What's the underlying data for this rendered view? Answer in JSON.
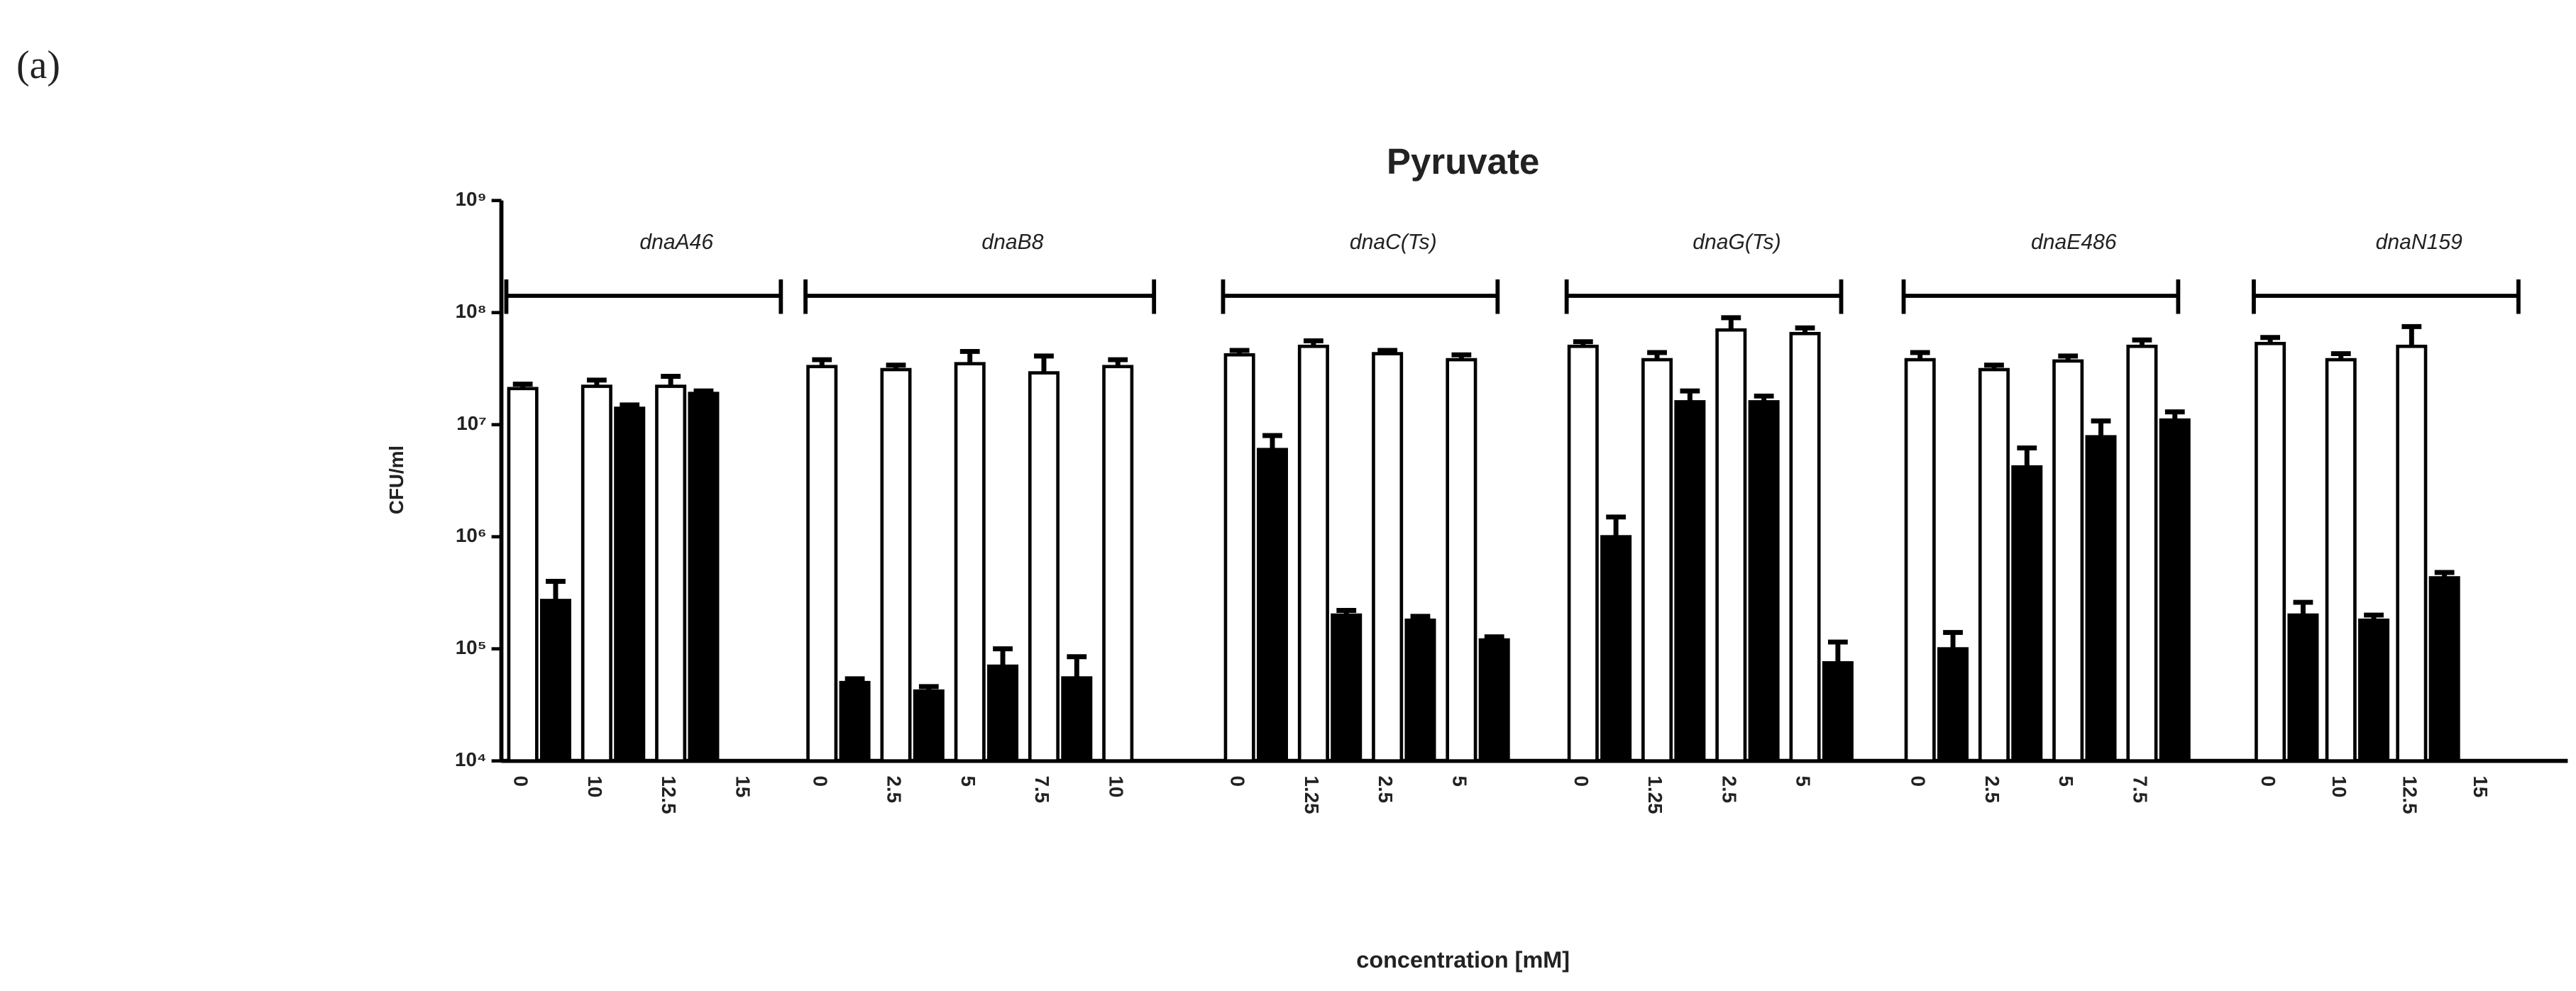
{
  "panel_label": "(a)",
  "chart_data": {
    "type": "bar",
    "title": "Pyruvate",
    "ylabel": "CFU/ml",
    "xlabel": "concentration [mM]",
    "log_scale": true,
    "ylim": [
      10000,
      1000000000
    ],
    "yticks": [
      {
        "value": 10000,
        "label": "10⁴"
      },
      {
        "value": 100000,
        "label": "10⁵"
      },
      {
        "value": 1000000,
        "label": "10⁶"
      },
      {
        "value": 10000000,
        "label": "10⁷"
      },
      {
        "value": 100000000,
        "label": "10⁸"
      },
      {
        "value": 1000000000,
        "label": "10⁹"
      }
    ],
    "colors": [
      "#ffffff",
      "#000000"
    ],
    "groups": [
      {
        "name": "dnaA46",
        "categories": [
          "0",
          "10",
          "12.5",
          "15"
        ],
        "series": [
          {
            "values": [
              21000000,
              22000000,
              22000000,
              null
            ],
            "errors": [
              2000000,
              3000000,
              5000000,
              null
            ]
          },
          {
            "values": [
              270000,
              14000000,
              19000000,
              null
            ],
            "errors": [
              130000,
              1000000,
              1000000,
              null
            ]
          }
        ]
      },
      {
        "name": "dnaB8",
        "categories": [
          "0",
          "2.5",
          "5",
          "7.5",
          "10"
        ],
        "series": [
          {
            "values": [
              33000000,
              31000000,
              35000000,
              29000000,
              33000000
            ],
            "errors": [
              5000000,
              3000000,
              10000000,
              12000000,
              5000000
            ]
          },
          {
            "values": [
              50000,
              42000,
              70000,
              55000,
              null
            ],
            "errors": [
              4000,
              4000,
              30000,
              30000,
              null
            ]
          }
        ]
      },
      {
        "name": "dnaC(Ts)",
        "categories": [
          "0",
          "1.25",
          "2.5",
          "5"
        ],
        "series": [
          {
            "values": [
              42000000,
              50000000,
              43000000,
              38000000
            ],
            "errors": [
              4000000,
              6000000,
              3000000,
              4000000
            ]
          },
          {
            "values": [
              6000000,
              200000,
              180000,
              120000
            ],
            "errors": [
              2000000,
              20000,
              15000,
              8000
            ]
          }
        ]
      },
      {
        "name": "dnaG(Ts)",
        "categories": [
          "0",
          "1.25",
          "2.5",
          "5"
        ],
        "series": [
          {
            "values": [
              50000000,
              38000000,
              70000000,
              65000000
            ],
            "errors": [
              5000000,
              6000000,
              20000000,
              8000000
            ]
          },
          {
            "values": [
              1000000,
              16000000,
              16000000,
              75000
            ],
            "errors": [
              500000,
              4000000,
              2000000,
              40000
            ]
          }
        ]
      },
      {
        "name": "dnaE486",
        "categories": [
          "0",
          "2.5",
          "5",
          "7.5"
        ],
        "series": [
          {
            "values": [
              38000000,
              31000000,
              37000000,
              50000000
            ],
            "errors": [
              6000000,
              3000000,
              4000000,
              7000000
            ]
          },
          {
            "values": [
              100000,
              4200000,
              7800000,
              11000000
            ],
            "errors": [
              40000,
              2000000,
              3000000,
              2000000
            ]
          }
        ]
      },
      {
        "name": "dnaN159",
        "categories": [
          "0",
          "10",
          "12.5",
          "15"
        ],
        "series": [
          {
            "values": [
              53000000,
              38000000,
              50000000,
              null
            ],
            "errors": [
              7000000,
              5000000,
              25000000,
              null
            ]
          },
          {
            "values": [
              200000,
              180000,
              430000,
              null
            ],
            "errors": [
              60000,
              20000,
              50000,
              null
            ]
          }
        ]
      }
    ]
  }
}
